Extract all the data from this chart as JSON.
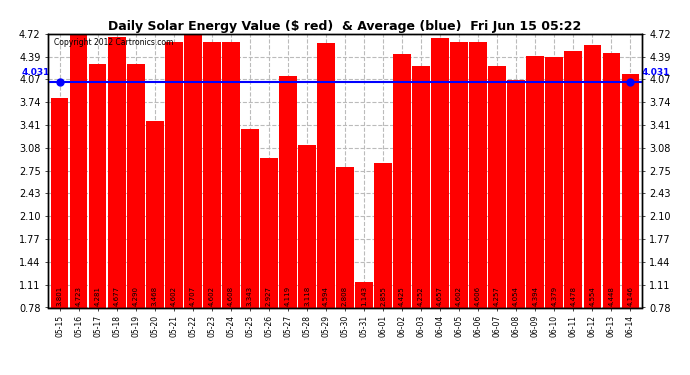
{
  "title": "Daily Solar Energy Value ($ red)  & Average (blue)  Fri Jun 15 05:22",
  "copyright": "Copyright 2012 Cartronics.com",
  "average": 4.031,
  "average_label": "4.031",
  "bar_color": "#ff0000",
  "average_color": "#0000ff",
  "background_color": "#ffffff",
  "grid_color": "#bbbbbb",
  "ylim": [
    0.78,
    4.72
  ],
  "yticks": [
    0.78,
    1.11,
    1.44,
    1.77,
    2.1,
    2.43,
    2.75,
    3.08,
    3.41,
    3.74,
    4.07,
    4.39,
    4.72
  ],
  "categories": [
    "05-15",
    "05-16",
    "05-17",
    "05-18",
    "05-19",
    "05-20",
    "05-21",
    "05-22",
    "05-23",
    "05-24",
    "05-25",
    "05-26",
    "05-27",
    "05-28",
    "05-29",
    "05-30",
    "05-31",
    "06-01",
    "06-02",
    "06-03",
    "06-04",
    "06-05",
    "06-06",
    "06-07",
    "06-08",
    "06-09",
    "06-10",
    "06-11",
    "06-12",
    "06-13",
    "06-14"
  ],
  "values": [
    3.801,
    4.723,
    4.281,
    4.677,
    4.29,
    3.468,
    4.602,
    4.707,
    4.602,
    4.608,
    3.343,
    2.927,
    4.119,
    3.118,
    4.594,
    2.808,
    1.143,
    2.855,
    4.425,
    4.252,
    4.657,
    4.602,
    4.606,
    4.257,
    4.054,
    4.394,
    4.379,
    4.478,
    4.554,
    4.448,
    4.146
  ]
}
